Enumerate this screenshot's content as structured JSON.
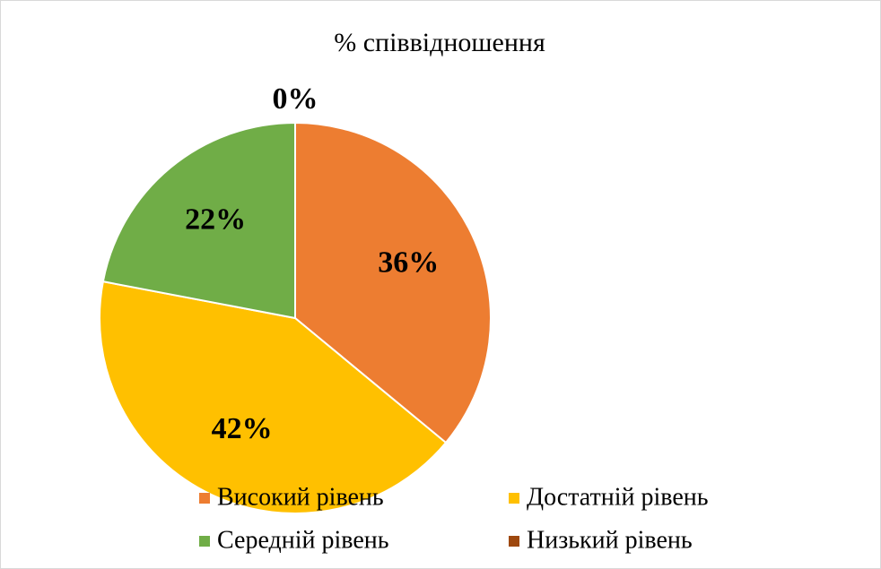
{
  "chart_data": {
    "type": "pie",
    "title": "% співвідношення",
    "categories": [
      "Високий рівень",
      "Достатній рівень",
      "Середній рівень",
      "Низький рівень"
    ],
    "values": [
      36,
      42,
      22,
      0
    ],
    "value_labels": [
      "36%",
      "42%",
      "22%",
      "0%"
    ],
    "colors": [
      "#ED7D31",
      "#FFC000",
      "#70AD47",
      "#9E480E"
    ],
    "legend": "bottom"
  }
}
